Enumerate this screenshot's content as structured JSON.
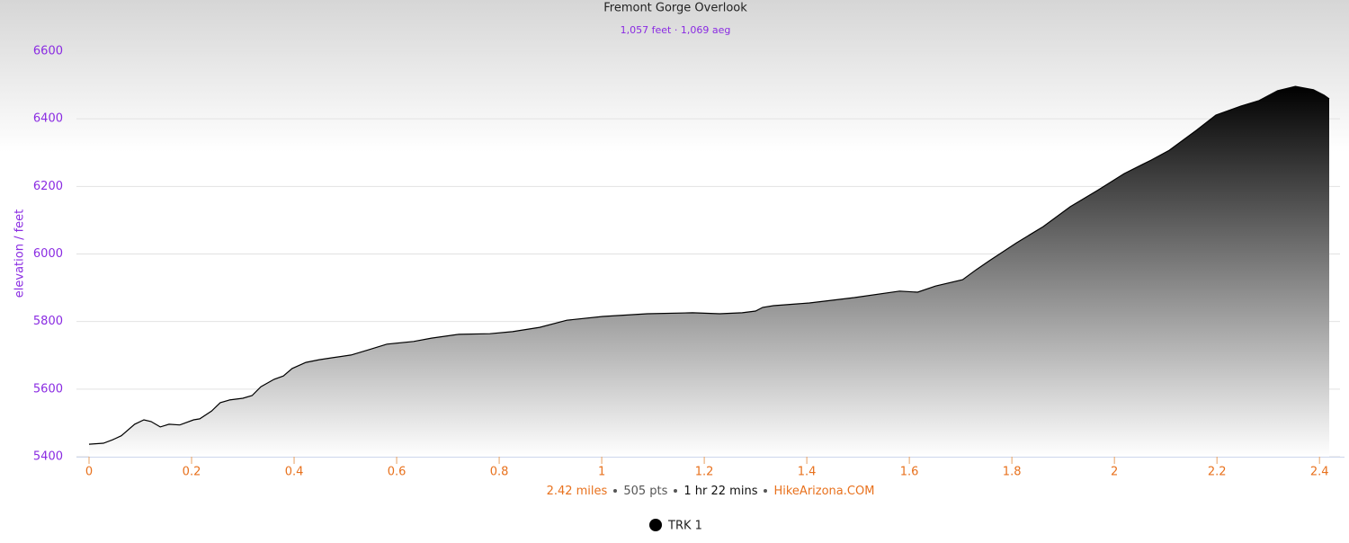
{
  "chart_data": {
    "type": "area",
    "title": "Fremont Gorge Overlook",
    "subtitle": "1,057 feet · 1,069 aeg",
    "y_label": "elevation / feet",
    "footer": [
      "2.42 miles",
      "505 pts",
      "1 hr 22 mins",
      "HikeArizona.COM"
    ],
    "series": [
      {
        "name": "TRK 1",
        "color": "#000000",
        "x": [
          0,
          0.028,
          0.046,
          0.063,
          0.089,
          0.107,
          0.121,
          0.139,
          0.156,
          0.177,
          0.204,
          0.216,
          0.239,
          0.256,
          0.274,
          0.3,
          0.318,
          0.335,
          0.361,
          0.379,
          0.396,
          0.423,
          0.449,
          0.475,
          0.511,
          0.546,
          0.581,
          0.633,
          0.668,
          0.721,
          0.782,
          0.826,
          0.879,
          0.932,
          1.002,
          1.089,
          1.177,
          1.23,
          1.274,
          1.3,
          1.314,
          1.335,
          1.405,
          1.493,
          1.581,
          1.616,
          1.651,
          1.704,
          1.73,
          1.756,
          1.809,
          1.861,
          1.914,
          1.967,
          2.019,
          2.072,
          2.107,
          2.16,
          2.198,
          2.247,
          2.282,
          2.318,
          2.353,
          2.388,
          2.409,
          2.419
        ],
        "values": [
          5437,
          5440,
          5450,
          5462,
          5496,
          5509,
          5504,
          5488,
          5496,
          5494,
          5509,
          5512,
          5535,
          5560,
          5568,
          5573,
          5581,
          5607,
          5629,
          5639,
          5661,
          5679,
          5687,
          5693,
          5701,
          5717,
          5733,
          5741,
          5751,
          5762,
          5764,
          5770,
          5783,
          5804,
          5815,
          5823,
          5826,
          5823,
          5826,
          5831,
          5842,
          5847,
          5855,
          5871,
          5890,
          5887,
          5905,
          5924,
          5953,
          5980,
          6033,
          6081,
          6140,
          6188,
          6238,
          6278,
          6307,
          6366,
          6411,
          6438,
          6454,
          6483,
          6496,
          6486,
          6470,
          6459
        ]
      }
    ],
    "xlim": [
      0,
      2.44
    ],
    "xticks": [
      0,
      0.2,
      0.4,
      0.6,
      0.8,
      1,
      1.2,
      1.4,
      1.6,
      1.8,
      2,
      2.2,
      2.4
    ],
    "ylim": [
      5400,
      6600
    ],
    "yticks": [
      5400,
      5600,
      5800,
      6000,
      6200,
      6400,
      6600
    ],
    "grid": true
  }
}
